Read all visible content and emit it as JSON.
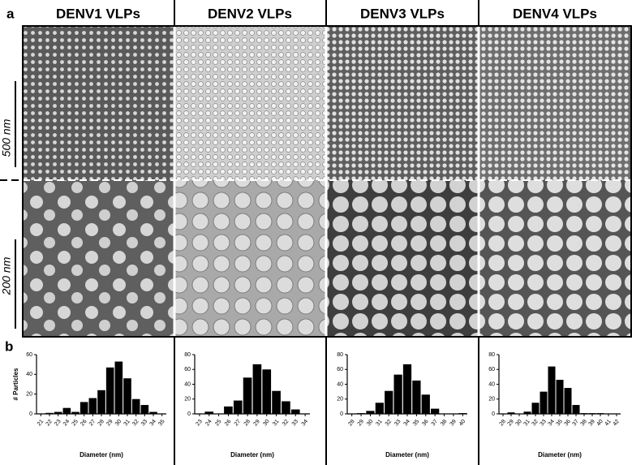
{
  "figure": {
    "panel_a": "a",
    "panel_b": "b",
    "columns": [
      "DENV1 VLPs",
      "DENV2 VLPs",
      "DENV3 VLPs",
      "DENV4 VLPs"
    ],
    "scale_top": "500 nm",
    "scale_bottom": "200 nm"
  },
  "chart_data": [
    {
      "type": "bar",
      "y_label": "# Particles",
      "x_label": "Diameter (nm)",
      "color": "#000000",
      "categories": [
        "21",
        "22",
        "23",
        "24",
        "25",
        "26",
        "27",
        "28",
        "29",
        "30",
        "31",
        "32",
        "33",
        "34",
        "35"
      ],
      "values": [
        0,
        1,
        2,
        6,
        2,
        12,
        16,
        24,
        47,
        53,
        36,
        15,
        9,
        2,
        0
      ],
      "ylim": [
        0,
        60
      ],
      "yticks": [
        0,
        20,
        40,
        60
      ]
    },
    {
      "type": "bar",
      "x_label": "Diameter (nm)",
      "color": "#000000",
      "categories": [
        "23",
        "24",
        "25",
        "26",
        "27",
        "28",
        "29",
        "30",
        "31",
        "32",
        "33",
        "34"
      ],
      "values": [
        0,
        3,
        0,
        10,
        18,
        49,
        67,
        60,
        31,
        17,
        6,
        0
      ],
      "ylim": [
        0,
        80
      ],
      "yticks": [
        0,
        20,
        40,
        60,
        80
      ]
    },
    {
      "type": "bar",
      "x_label": "Diameter (nm)",
      "color": "#000000",
      "categories": [
        "28",
        "29",
        "30",
        "31",
        "32",
        "33",
        "34",
        "35",
        "36",
        "37",
        "38",
        "39",
        "40"
      ],
      "values": [
        0,
        1,
        4,
        15,
        31,
        53,
        67,
        45,
        26,
        7,
        0,
        0,
        1
      ],
      "ylim": [
        0,
        80
      ],
      "yticks": [
        0,
        20,
        40,
        60,
        80
      ]
    },
    {
      "type": "bar",
      "x_label": "Diameter (nm)",
      "color": "#000000",
      "categories": [
        "28",
        "29",
        "30",
        "31",
        "32",
        "33",
        "34",
        "35",
        "36",
        "37",
        "38",
        "39",
        "40",
        "41",
        "42"
      ],
      "values": [
        0,
        2,
        0,
        3,
        15,
        30,
        64,
        46,
        35,
        12,
        1,
        1,
        1,
        0,
        0
      ],
      "ylim": [
        0,
        80
      ],
      "yticks": [
        0,
        20,
        40,
        60,
        80
      ]
    }
  ]
}
